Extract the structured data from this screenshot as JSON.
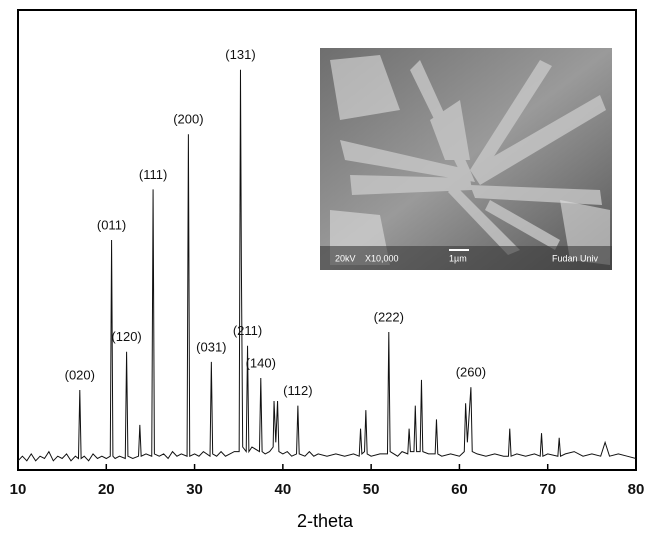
{
  "chart_data": {
    "type": "line",
    "xlabel": "2-theta",
    "color": "#111111",
    "xlim": [
      10,
      80
    ],
    "ylim": [
      0,
      100
    ],
    "xticks": [
      10,
      20,
      30,
      40,
      50,
      60,
      70,
      80
    ],
    "x": [
      10,
      10.5,
      11,
      11.5,
      12,
      12.5,
      13,
      13.5,
      14,
      14.5,
      15,
      15.5,
      16,
      16.5,
      16.85,
      17,
      17.15,
      17.5,
      18,
      18.5,
      19,
      19.5,
      20,
      20.45,
      20.6,
      20.75,
      21,
      21.5,
      22.15,
      22.3,
      22.45,
      23,
      23.65,
      23.8,
      23.95,
      24.5,
      25.15,
      25.3,
      25.45,
      26,
      26.5,
      27,
      27.5,
      28,
      28.5,
      29.15,
      29.3,
      29.45,
      30,
      30.5,
      31,
      31.75,
      31.9,
      32.05,
      32.5,
      33,
      33.5,
      34,
      34.5,
      35.05,
      35.2,
      35.3,
      35.45,
      35.85,
      36,
      36.15,
      36.5,
      37.35,
      37.5,
      37.65,
      38,
      38.5,
      38.9,
      39,
      39.2,
      39.4,
      39.55,
      40,
      40.5,
      41,
      41.55,
      41.7,
      41.85,
      42.5,
      43,
      43.5,
      44,
      45,
      46,
      47,
      48,
      48.65,
      48.8,
      48.95,
      49.25,
      49.4,
      49.55,
      50,
      51,
      51.85,
      52,
      52.15,
      53,
      53.5,
      54.15,
      54.3,
      54.45,
      54.85,
      55,
      55.15,
      55.55,
      55.7,
      55.85,
      56.5,
      57.25,
      57.4,
      57.55,
      58,
      59,
      60,
      60.55,
      60.7,
      60.9,
      61.3,
      61.45,
      62,
      63,
      64,
      65,
      65.55,
      65.7,
      65.85,
      66.5,
      67.5,
      68.5,
      69.15,
      69.3,
      69.45,
      70,
      71.15,
      71.3,
      71.45,
      72,
      73,
      74,
      75,
      76,
      76.5,
      77,
      78,
      79,
      80
    ],
    "values": [
      2,
      3,
      2,
      3.5,
      2,
      3,
      2.5,
      4,
      2,
      3,
      2.5,
      3.5,
      2,
      3,
      2.5,
      17.4,
      2.5,
      3,
      2,
      3.5,
      2.5,
      3,
      2.5,
      3,
      50,
      3,
      2.5,
      3,
      2.5,
      25.7,
      3,
      2.5,
      3,
      9.8,
      3,
      3.5,
      3,
      61,
      3.5,
      3,
      3.5,
      2.5,
      4,
      3,
      3.5,
      3,
      73,
      3,
      3.5,
      3,
      4,
      3,
      23.5,
      3.5,
      3,
      4,
      3,
      3.5,
      4,
      4,
      87,
      45,
      5,
      4,
      27,
      4,
      5,
      4,
      20,
      4,
      3.5,
      4,
      5,
      15,
      6,
      15,
      4,
      3.5,
      4,
      3,
      3.5,
      14,
      3.5,
      3,
      4,
      3,
      3.5,
      3,
      3.5,
      3,
      3.5,
      3,
      9,
      3.5,
      4,
      13,
      3.5,
      3,
      3.5,
      3.5,
      30,
      4,
      3,
      4,
      3.5,
      9,
      4,
      4,
      14,
      4,
      4,
      19.6,
      4,
      3.5,
      3.5,
      11,
      3.5,
      3,
      3.5,
      3,
      4,
      14.5,
      6,
      18,
      4,
      3.5,
      3,
      3.5,
      3,
      3,
      9,
      3,
      3.5,
      3,
      3.5,
      3,
      8,
      3,
      3.5,
      3,
      7,
      3,
      3.5,
      4,
      3,
      3.5,
      3,
      6,
      3,
      3.5,
      3,
      2.5
    ],
    "annotations": [
      {
        "text": "(020)",
        "x": 17
      },
      {
        "text": "(011)",
        "x": 20.6
      },
      {
        "text": "(120)",
        "x": 22.3
      },
      {
        "text": "(111)",
        "x": 25.3
      },
      {
        "text": "(200)",
        "x": 29.3
      },
      {
        "text": "(031)",
        "x": 31.9
      },
      {
        "text": "(131)",
        "x": 35.2
      },
      {
        "text": "(211)",
        "x": 36
      },
      {
        "text": "(140)",
        "x": 37.5
      },
      {
        "text": "(112)",
        "x": 41.7
      },
      {
        "text": "(222)",
        "x": 52
      },
      {
        "text": "(260)",
        "x": 61.3
      }
    ],
    "inset_labels": [
      "20kV",
      "X10,000",
      "1µm",
      "Fudan Univ"
    ]
  }
}
